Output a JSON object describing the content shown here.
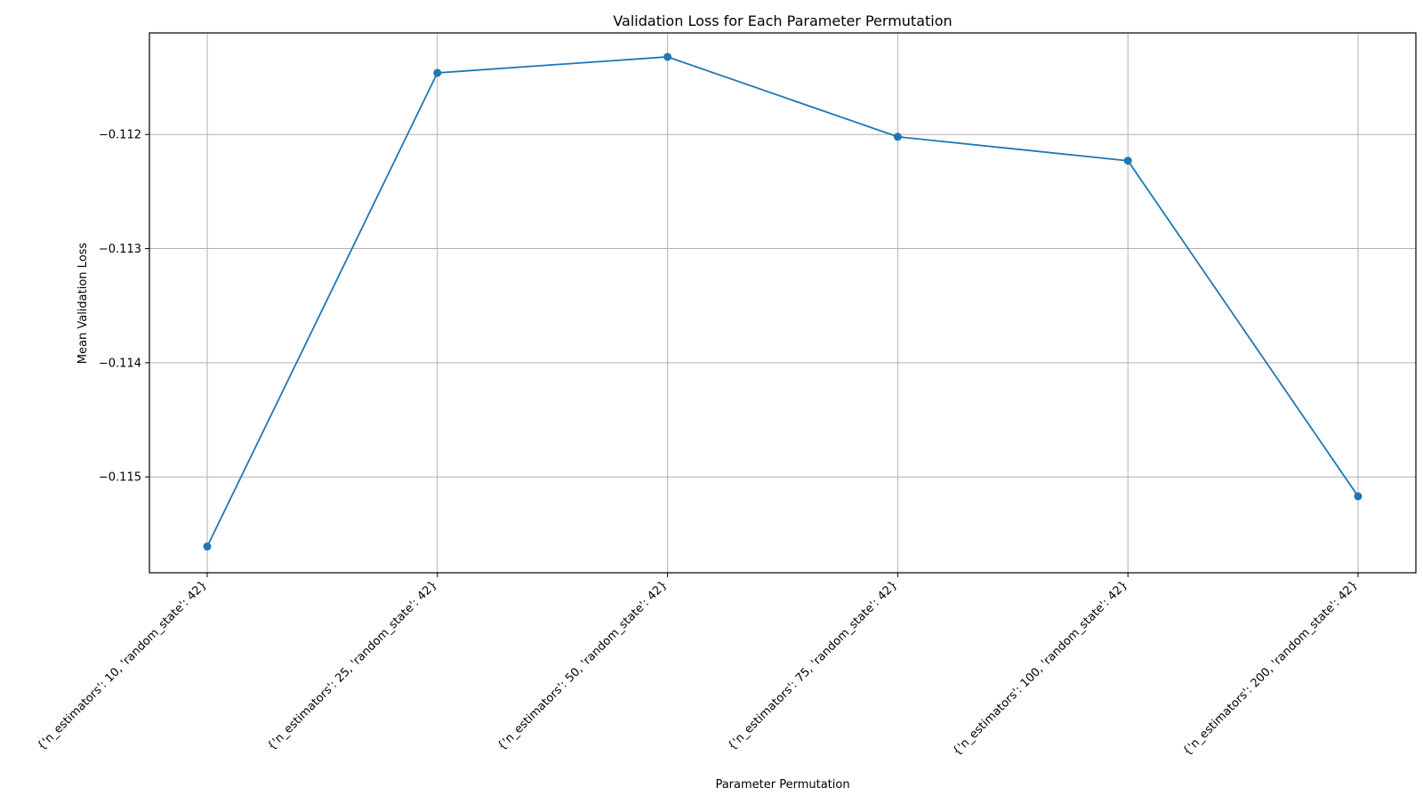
{
  "chart_data": {
    "type": "line",
    "title": "Validation Loss for Each Parameter Permutation",
    "xlabel": "Parameter Permutation",
    "ylabel": "Mean Validation Loss",
    "categories": [
      "{'n_estimators': 10, 'random_state': 42}",
      "{'n_estimators': 25, 'random_state': 42}",
      "{'n_estimators': 50, 'random_state': 42}",
      "{'n_estimators': 75, 'random_state': 42}",
      "{'n_estimators': 100, 'random_state': 42}",
      "{'n_estimators': 200, 'random_state': 42}"
    ],
    "series": [
      {
        "values": [
          -0.11561,
          -0.11146,
          -0.11132,
          -0.11202,
          -0.11223,
          -0.11517
        ],
        "color": "#1f77b4",
        "marker": "circle"
      }
    ],
    "yticks": [
      -0.112,
      -0.113,
      -0.114,
      -0.115
    ],
    "ytick_labels": [
      "−0.112",
      "−0.113",
      "−0.114",
      "−0.115"
    ],
    "ylim": [
      -0.11584,
      -0.11111
    ],
    "grid": true,
    "legend": "none"
  }
}
